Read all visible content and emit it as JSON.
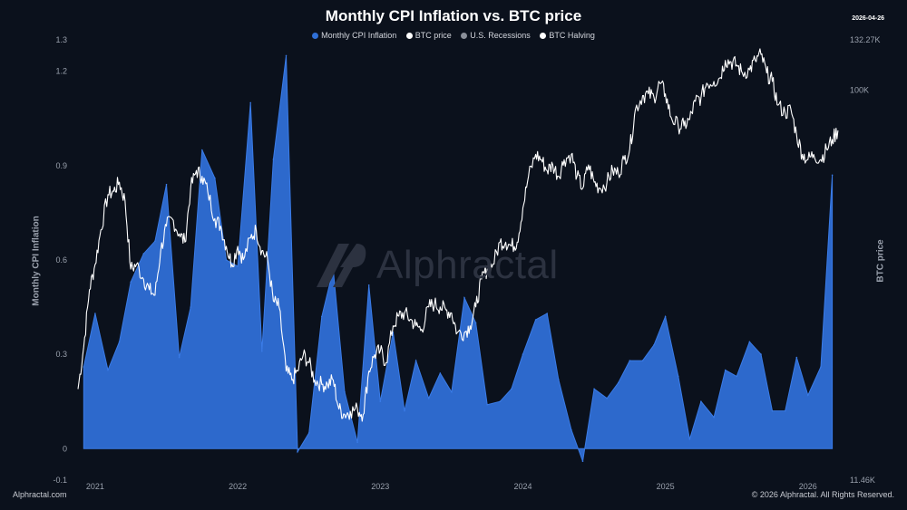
{
  "header": {
    "title": "Monthly CPI Inflation vs. BTC price",
    "date": "2026-04-26"
  },
  "legend": [
    {
      "label": "Monthly CPI Inflation",
      "color": "#2f6fd6"
    },
    {
      "label": "BTC price",
      "color": "#ffffff"
    },
    {
      "label": "U.S. Recessions",
      "color": "#8a8f99"
    },
    {
      "label": "BTC Halving",
      "color": "#ffffff"
    }
  ],
  "watermark": "Alphractal",
  "footer": {
    "left": "Alphractal.com",
    "right": "© 2026 Alphractal. All Rights Reserved."
  },
  "chart_data": {
    "type": "area",
    "title": "Monthly CPI Inflation vs. BTC price",
    "ylabel": "Monthly CPI Inflation",
    "y2label": "BTC price",
    "ylim": [
      -0.1,
      1.3
    ],
    "yticks": [
      1.3,
      1.2,
      0.9,
      0.6,
      0.3,
      0,
      -0.1
    ],
    "ytick_labels": [
      "1.3",
      "1.2",
      "0.9",
      "0.6",
      "0.3",
      "0",
      "-0.1"
    ],
    "y2_scale": "log",
    "y2lim": [
      11460,
      132270
    ],
    "y2ticks": [
      132270,
      100000,
      11460
    ],
    "y2tick_labels": [
      "132.27K",
      "100K",
      "11.46K"
    ],
    "xlim": [
      2020.96,
      2026.31
    ],
    "xticks": [
      2021,
      2022,
      2023,
      2024,
      2025,
      2026
    ],
    "xtick_labels": [
      "2021",
      "2022",
      "2023",
      "2024",
      "2025",
      "2026"
    ],
    "grid": false,
    "series": [
      {
        "name": "Monthly CPI Inflation",
        "type": "area",
        "color": "#2f6fd6",
        "x": [
          2021.0,
          2021.08,
          2021.17,
          2021.25,
          2021.33,
          2021.42,
          2021.5,
          2021.58,
          2021.67,
          2021.75,
          2021.83,
          2021.92,
          2022.0,
          2022.08,
          2022.17,
          2022.25,
          2022.33,
          2022.42,
          2022.5,
          2022.58,
          2022.67,
          2022.75,
          2022.83,
          2022.92,
          2023.0,
          2023.08,
          2023.17,
          2023.25,
          2023.33,
          2023.42,
          2023.5,
          2023.58,
          2023.67,
          2023.75,
          2023.83,
          2023.92,
          2024.0,
          2024.08,
          2024.17,
          2024.25,
          2024.33,
          2024.42,
          2024.5,
          2024.58,
          2024.67,
          2024.75,
          2024.83,
          2024.92,
          2025.0,
          2025.08,
          2025.17,
          2025.25,
          2025.33,
          2025.42,
          2025.5,
          2025.58,
          2025.67,
          2025.75,
          2025.83,
          2025.92,
          2026.0,
          2026.08,
          2026.17,
          2026.25
        ],
        "values": [
          0.26,
          0.43,
          0.25,
          0.34,
          0.53,
          0.62,
          0.66,
          0.84,
          0.29,
          0.45,
          0.95,
          0.86,
          0.6,
          0.58,
          1.1,
          0.31,
          0.92,
          1.25,
          -0.01,
          0.05,
          0.42,
          0.57,
          0.18,
          0.02,
          0.52,
          0.15,
          0.37,
          0.12,
          0.28,
          0.16,
          0.24,
          0.18,
          0.48,
          0.4,
          0.14,
          0.15,
          0.19,
          0.3,
          0.41,
          0.43,
          0.22,
          0.06,
          -0.04,
          0.19,
          0.16,
          0.21,
          0.28,
          0.28,
          0.33,
          0.42,
          0.23,
          0.03,
          0.15,
          0.1,
          0.25,
          0.23,
          0.34,
          0.3,
          0.12,
          0.12,
          0.29,
          0.17,
          0.26,
          0.87
        ]
      },
      {
        "name": "BTC price",
        "type": "line",
        "color": "#ffffff",
        "scale": "log",
        "x": [
          2020.96,
          2021.0,
          2021.04,
          2021.08,
          2021.12,
          2021.17,
          2021.21,
          2021.25,
          2021.29,
          2021.33,
          2021.37,
          2021.42,
          2021.46,
          2021.5,
          2021.54,
          2021.58,
          2021.62,
          2021.67,
          2021.71,
          2021.75,
          2021.79,
          2021.83,
          2021.87,
          2021.92,
          2021.96,
          2022.0,
          2022.04,
          2022.08,
          2022.12,
          2022.17,
          2022.21,
          2022.25,
          2022.29,
          2022.33,
          2022.37,
          2022.42,
          2022.46,
          2022.5,
          2022.54,
          2022.58,
          2022.62,
          2022.67,
          2022.71,
          2022.75,
          2022.79,
          2022.83,
          2022.87,
          2022.92,
          2022.96,
          2023.0,
          2023.04,
          2023.08,
          2023.12,
          2023.17,
          2023.21,
          2023.25,
          2023.29,
          2023.33,
          2023.37,
          2023.42,
          2023.46,
          2023.5,
          2023.54,
          2023.58,
          2023.62,
          2023.67,
          2023.71,
          2023.75,
          2023.79,
          2023.83,
          2023.87,
          2023.92,
          2023.96,
          2024.0,
          2024.04,
          2024.08,
          2024.12,
          2024.17,
          2024.21,
          2024.25,
          2024.29,
          2024.33,
          2024.37,
          2024.42,
          2024.46,
          2024.5,
          2024.54,
          2024.58,
          2024.62,
          2024.67,
          2024.71,
          2024.75,
          2024.79,
          2024.83,
          2024.87,
          2024.92,
          2024.96,
          2025.0,
          2025.04,
          2025.08,
          2025.12,
          2025.17,
          2025.21,
          2025.25,
          2025.29,
          2025.33,
          2025.37,
          2025.42,
          2025.46,
          2025.5,
          2025.54,
          2025.58,
          2025.62,
          2025.67,
          2025.71,
          2025.75,
          2025.79,
          2025.83,
          2025.87,
          2025.92,
          2025.96,
          2026.0,
          2026.04,
          2026.08,
          2026.12,
          2026.17,
          2026.21,
          2026.25,
          2026.29
        ],
        "values": [
          19000,
          24000,
          33000,
          38000,
          46000,
          56000,
          57000,
          60000,
          54000,
          37000,
          38000,
          35000,
          33000,
          32000,
          41000,
          47000,
          49000,
          45000,
          43000,
          58000,
          64000,
          62000,
          57000,
          49000,
          47000,
          42000,
          38000,
          42000,
          39000,
          44000,
          46000,
          41000,
          39000,
          31000,
          30000,
          21000,
          20000,
          21000,
          23000,
          22000,
          20000,
          19500,
          19500,
          20000,
          17000,
          16500,
          16800,
          17000,
          16500,
          21000,
          23000,
          23500,
          22000,
          27000,
          28500,
          29000,
          28000,
          27000,
          26500,
          30000,
          30500,
          30000,
          29500,
          29000,
          26000,
          26000,
          27000,
          30000,
          35000,
          37000,
          38000,
          43000,
          43000,
          42000,
          43000,
          52000,
          62000,
          70000,
          68000,
          64000,
          66000,
          62000,
          68000,
          70000,
          62000,
          58000,
          66000,
          60000,
          58000,
          60000,
          64000,
          63000,
          68000,
          72000,
          90000,
          97000,
          98000,
          96000,
          104000,
          98000,
          86000,
          82000,
          82000,
          85000,
          94000,
          96000,
          104000,
          105000,
          107000,
          118000,
          117000,
          115000,
          110000,
          112000,
          118000,
          122000,
          110000,
          105000,
          92000,
          88000,
          90000,
          78000,
          70000,
          68000,
          70000,
          68000,
          72000,
          76000,
          80000
        ]
      }
    ]
  }
}
